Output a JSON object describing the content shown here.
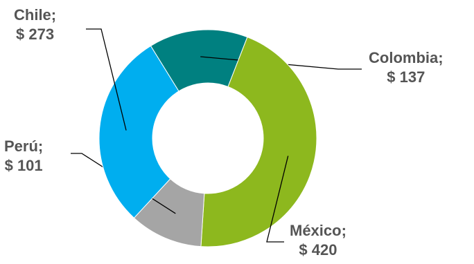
{
  "chart_data": {
    "type": "pie",
    "subtype": "donut",
    "title": "",
    "legend": "none",
    "slices": [
      {
        "label": "Colombia;",
        "value_label": "$ 137",
        "value": 137,
        "color": "#008080"
      },
      {
        "label": "México;",
        "value_label": "$ 420",
        "value": 420,
        "color": "#8DB81E"
      },
      {
        "label": "Perú;",
        "value_label": "$ 101",
        "value": 101,
        "color": "#A5A5A5"
      },
      {
        "label": "Chile;",
        "value_label": "$ 273",
        "value": 273,
        "color": "#00AEEF"
      }
    ]
  }
}
